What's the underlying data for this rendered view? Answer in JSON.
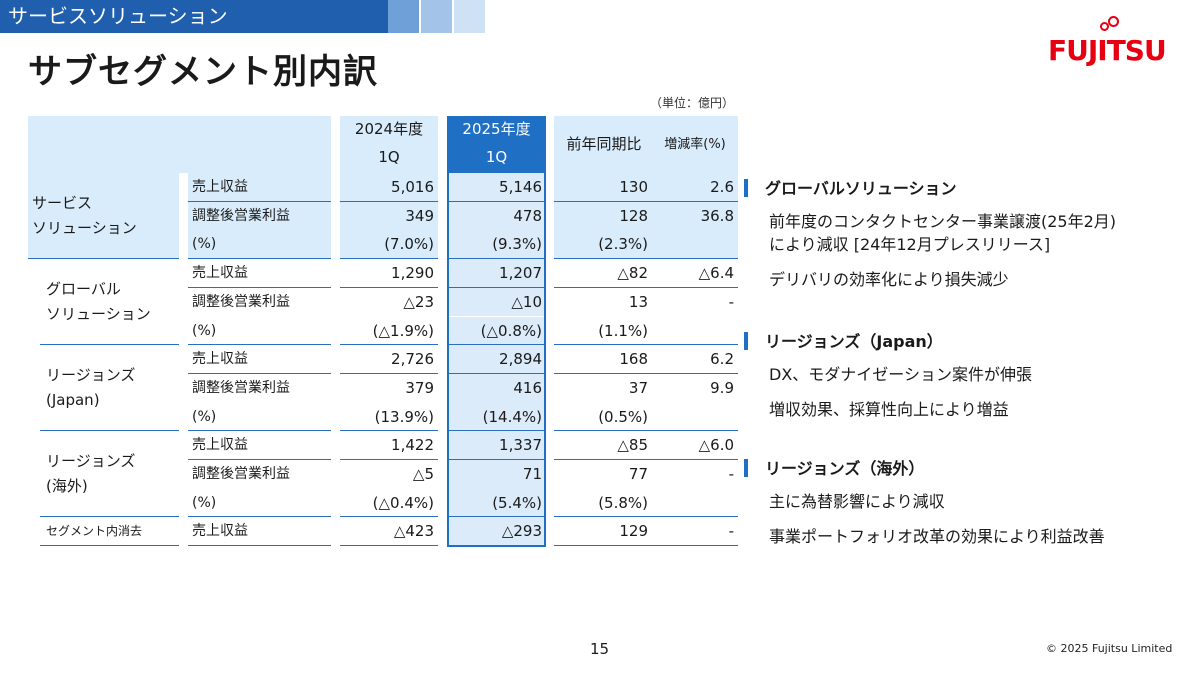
{
  "header": {
    "band_label": "サービスソリューション"
  },
  "title": "サブセグメント別内訳",
  "logo_text": "FUJITSU",
  "unit": "（単位：億円）",
  "table": {
    "columns": [
      "2024年度\n1Q",
      "2025年度\n1Q",
      "前年同期比",
      "増減率(%)"
    ],
    "col_2024_line1": "2024年度",
    "col_2024_line2": "1Q",
    "col_2025_line1": "2025年度",
    "col_2025_line2": "1Q",
    "col_yoy": "前年同期比",
    "col_rate": "増減率(%)",
    "groups": [
      {
        "name_line1": "サービス",
        "name_line2": "ソリューション",
        "rows": [
          {
            "label": "売上収益",
            "v2024": "5,016",
            "v2025": "5,146",
            "yoy": "130",
            "rate": "2.6"
          },
          {
            "label": "調整後営業利益",
            "v2024": "349",
            "v2025": "478",
            "yoy": "128",
            "rate": "36.8"
          },
          {
            "label": "(%)",
            "v2024": "(7.0%)",
            "v2025": "(9.3%)",
            "yoy": "(2.3%)",
            "rate": ""
          }
        ]
      },
      {
        "name_line1": "グローバル",
        "name_line2": "ソリューション",
        "rows": [
          {
            "label": "売上収益",
            "v2024": "1,290",
            "v2025": "1,207",
            "yoy": "△82",
            "rate": "△6.4"
          },
          {
            "label": "調整後営業利益",
            "v2024": "△23",
            "v2025": "△10",
            "yoy": "13",
            "rate": "-"
          },
          {
            "label": "(%)",
            "v2024": "(△1.9%)",
            "v2025": "(△0.8%)",
            "yoy": "(1.1%)",
            "rate": ""
          }
        ]
      },
      {
        "name_line1": "リージョンズ",
        "name_line2": "(Japan)",
        "rows": [
          {
            "label": "売上収益",
            "v2024": "2,726",
            "v2025": "2,894",
            "yoy": "168",
            "rate": "6.2"
          },
          {
            "label": "調整後営業利益",
            "v2024": "379",
            "v2025": "416",
            "yoy": "37",
            "rate": "9.9"
          },
          {
            "label": "(%)",
            "v2024": "(13.9%)",
            "v2025": "(14.4%)",
            "yoy": "(0.5%)",
            "rate": ""
          }
        ]
      },
      {
        "name_line1": "リージョンズ",
        "name_line2": "(海外)",
        "rows": [
          {
            "label": "売上収益",
            "v2024": "1,422",
            "v2025": "1,337",
            "yoy": "△85",
            "rate": "△6.0"
          },
          {
            "label": "調整後営業利益",
            "v2024": "△5",
            "v2025": "71",
            "yoy": "77",
            "rate": "-"
          },
          {
            "label": "(%)",
            "v2024": "(△0.4%)",
            "v2025": "(5.4%)",
            "yoy": "(5.8%)",
            "rate": ""
          }
        ]
      },
      {
        "name_line1": "セグメント内消去",
        "name_line2": "",
        "rows": [
          {
            "label": "売上収益",
            "v2024": "△423",
            "v2025": "△293",
            "yoy": "129",
            "rate": "-"
          }
        ]
      }
    ]
  },
  "notes": [
    {
      "heading": "グローバルソリューション",
      "lines": [
        "前年度のコンタクトセンター事業譲渡(25年2月)\nにより減収 [24年12月プレスリリース]",
        "デリバリの効率化により損失減少"
      ]
    },
    {
      "heading": "リージョンズ（Japan）",
      "lines": [
        "DX、モダナイゼーション案件が伸張",
        "増収効果、採算性向上により増益"
      ]
    },
    {
      "heading": "リージョンズ（海外）",
      "lines": [
        "主に為替影響により減収",
        "事業ポートフォリオ改革の効果により利益改善"
      ]
    }
  ],
  "footer": {
    "page_number": "15",
    "copyright": "© 2025 Fujitsu Limited"
  }
}
